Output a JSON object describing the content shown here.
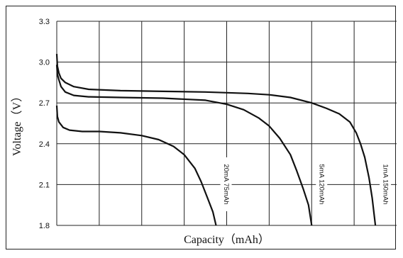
{
  "chart_data": {
    "type": "line",
    "title": "",
    "xlabel": "Capacity（mAh）",
    "ylabel": "Voltage（V）",
    "ylim": [
      1.8,
      3.3
    ],
    "yticks": [
      "3.3",
      "3.0",
      "2.7",
      "2.4",
      "2.1",
      "1.8"
    ],
    "xlim": [
      0,
      160
    ],
    "x_gridlines": 8,
    "grid": true,
    "line_color": "#111111",
    "series": [
      {
        "name": "1mA 150mAh",
        "x": [
          0,
          0.3,
          1,
          2,
          4,
          8,
          15,
          30,
          50,
          70,
          90,
          100,
          110,
          120,
          127,
          133,
          138,
          141,
          143,
          145,
          147,
          148.5,
          150
        ],
        "values": [
          3.06,
          2.97,
          2.92,
          2.88,
          2.85,
          2.82,
          2.8,
          2.79,
          2.785,
          2.78,
          2.77,
          2.76,
          2.74,
          2.7,
          2.66,
          2.62,
          2.56,
          2.48,
          2.4,
          2.3,
          2.15,
          2.0,
          1.8
        ]
      },
      {
        "name": "5mA 120mAh",
        "x": [
          0,
          0.3,
          1,
          2,
          4,
          8,
          15,
          30,
          50,
          70,
          80,
          88,
          95,
          100,
          105,
          110,
          113,
          116,
          118.5,
          120
        ],
        "values": [
          2.98,
          2.91,
          2.87,
          2.82,
          2.78,
          2.755,
          2.745,
          2.74,
          2.735,
          2.72,
          2.69,
          2.65,
          2.59,
          2.53,
          2.44,
          2.32,
          2.2,
          2.07,
          1.95,
          1.8
        ]
      },
      {
        "name": "20mA 75mAh",
        "x": [
          0,
          0.3,
          1,
          3,
          6,
          12,
          20,
          30,
          40,
          48,
          55,
          60,
          65,
          68,
          71,
          73.5,
          75
        ],
        "values": [
          2.68,
          2.6,
          2.56,
          2.52,
          2.5,
          2.49,
          2.49,
          2.48,
          2.46,
          2.43,
          2.38,
          2.32,
          2.22,
          2.12,
          2.0,
          1.9,
          1.8
        ]
      }
    ],
    "curve_labels": [
      "1mA 150mAh",
      "5mA 120mAh",
      "20mA 75mAh"
    ]
  }
}
